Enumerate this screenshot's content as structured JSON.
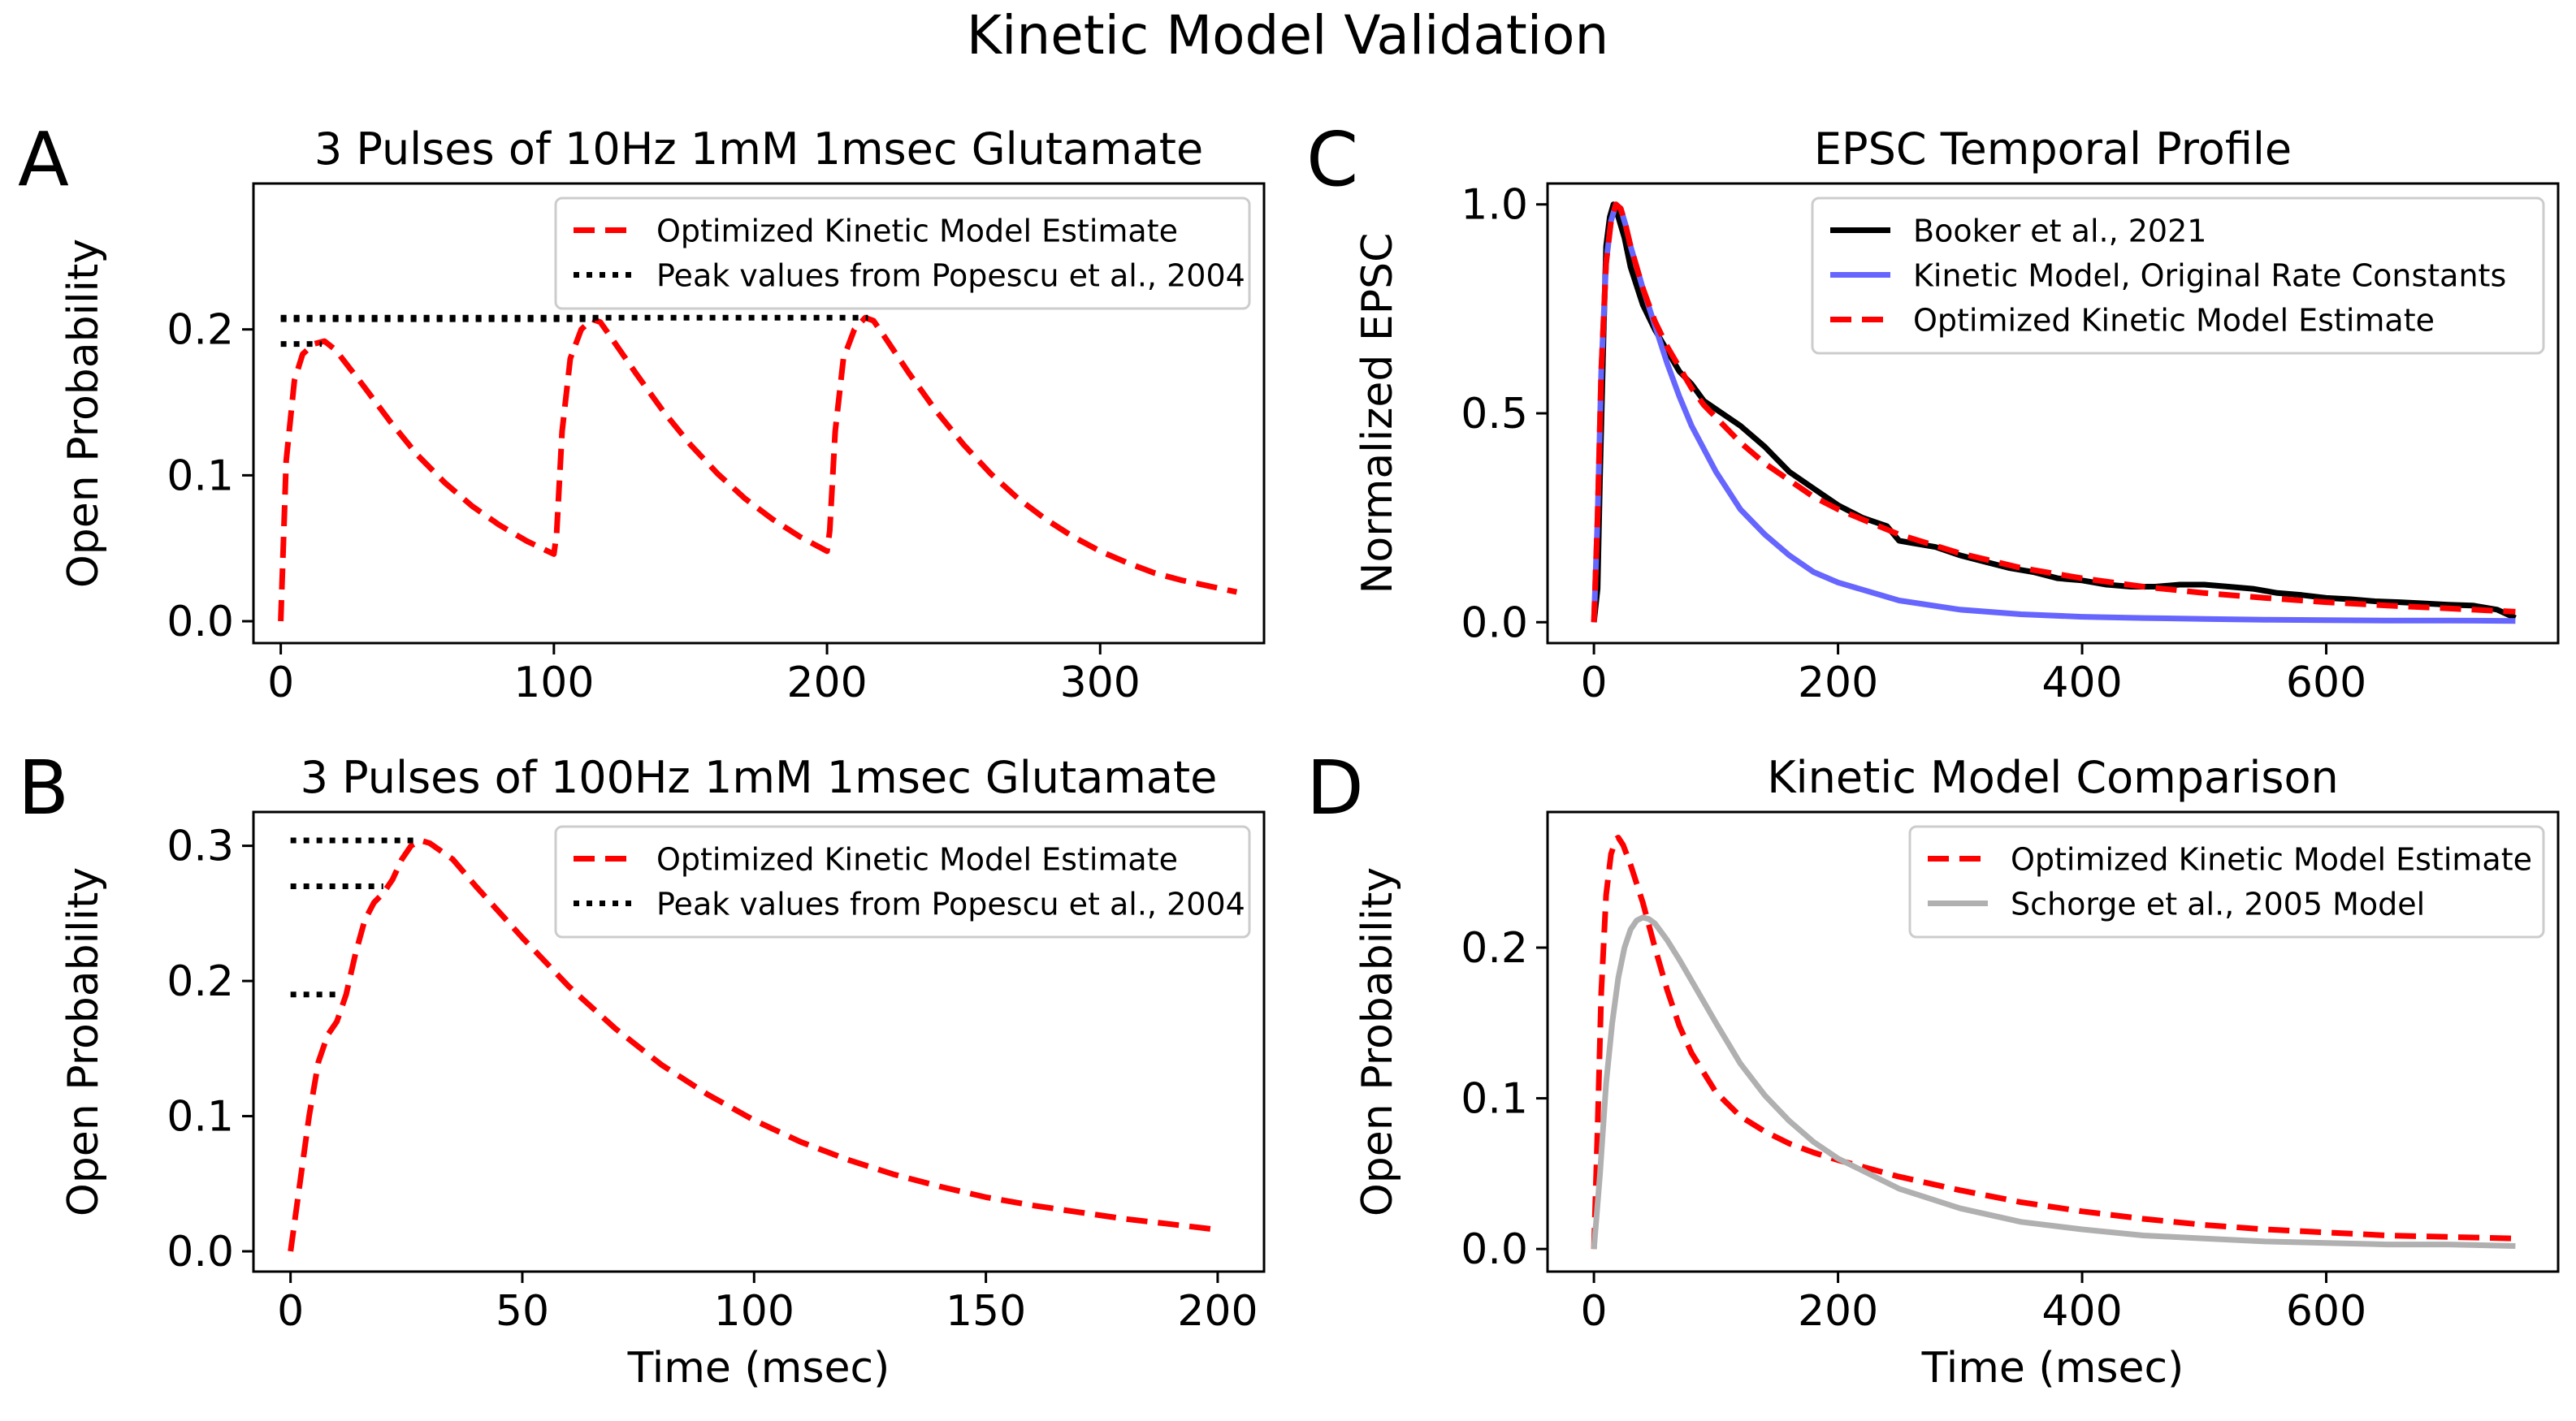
{
  "figure_title": "Kinetic Model Validation",
  "colors": {
    "optimized": "#ff0000",
    "popescu": "#000000",
    "booker": "#000000",
    "original": "#6666ff",
    "schorge": "#b0b0b0",
    "axis": "#000000"
  },
  "chart_data": [
    {
      "panel": "A",
      "type": "line",
      "title": "3 Pulses of 10Hz 1mM 1msec Glutamate",
      "xlabel": "",
      "ylabel": "Open Probability",
      "xlim": [
        -10,
        360
      ],
      "ylim": [
        -0.015,
        0.3
      ],
      "xticks": [
        0,
        100,
        200,
        300
      ],
      "yticks": [
        0.0,
        0.1,
        0.2
      ],
      "ytick_labels": [
        "0.0",
        "0.1",
        "0.2"
      ],
      "legend_position": "top-right",
      "series": [
        {
          "name": "Optimized Kinetic Model Estimate",
          "style": "dashed",
          "color_key": "optimized",
          "x": [
            0,
            2,
            5,
            8,
            12,
            16,
            20,
            30,
            40,
            50,
            60,
            70,
            80,
            90,
            100,
            101,
            103,
            106,
            110,
            114,
            117,
            120,
            130,
            140,
            150,
            160,
            170,
            180,
            190,
            200,
            201,
            203,
            206,
            210,
            214,
            217,
            220,
            230,
            240,
            250,
            260,
            270,
            280,
            290,
            300,
            310,
            320,
            330,
            340,
            350
          ],
          "y": [
            0.0,
            0.11,
            0.165,
            0.183,
            0.19,
            0.192,
            0.186,
            0.162,
            0.137,
            0.114,
            0.095,
            0.079,
            0.066,
            0.055,
            0.046,
            0.06,
            0.13,
            0.18,
            0.2,
            0.207,
            0.205,
            0.197,
            0.17,
            0.144,
            0.121,
            0.101,
            0.084,
            0.07,
            0.058,
            0.048,
            0.062,
            0.13,
            0.18,
            0.2,
            0.208,
            0.206,
            0.198,
            0.17,
            0.144,
            0.121,
            0.101,
            0.084,
            0.07,
            0.058,
            0.048,
            0.04,
            0.033,
            0.028,
            0.024,
            0.02
          ]
        },
        {
          "name": "Peak values from Popescu et al., 2004",
          "style": "dotted",
          "color_key": "popescu",
          "segments": [
            {
              "x": [
                0,
                15
              ],
              "y": [
                0.19,
                0.19
              ]
            },
            {
              "x": [
                0,
                115
              ],
              "y": [
                0.207,
                0.207
              ]
            },
            {
              "x": [
                0,
                215
              ],
              "y": [
                0.208,
                0.208
              ]
            }
          ]
        }
      ]
    },
    {
      "panel": "B",
      "type": "line",
      "title": "3 Pulses of 100Hz 1mM 1msec Glutamate",
      "xlabel": "Time (msec)",
      "ylabel": "Open Probability",
      "xlim": [
        -8,
        210
      ],
      "ylim": [
        -0.015,
        0.325
      ],
      "xticks": [
        0,
        50,
        100,
        150,
        200
      ],
      "yticks": [
        0.0,
        0.1,
        0.2,
        0.3
      ],
      "ytick_labels": [
        "0.0",
        "0.1",
        "0.2",
        "0.3"
      ],
      "legend_position": "top-right",
      "series": [
        {
          "name": "Optimized Kinetic Model Estimate",
          "style": "dashed",
          "color_key": "optimized",
          "x": [
            0,
            2,
            4,
            6,
            8,
            10,
            12,
            14,
            16,
            18,
            20,
            22,
            24,
            26,
            28,
            30,
            35,
            40,
            50,
            60,
            70,
            80,
            90,
            100,
            110,
            120,
            130,
            140,
            150,
            160,
            170,
            180,
            190,
            200
          ],
          "y": [
            0.0,
            0.05,
            0.1,
            0.14,
            0.16,
            0.17,
            0.19,
            0.22,
            0.245,
            0.258,
            0.265,
            0.275,
            0.29,
            0.3,
            0.304,
            0.302,
            0.29,
            0.27,
            0.232,
            0.196,
            0.165,
            0.138,
            0.116,
            0.097,
            0.081,
            0.068,
            0.057,
            0.048,
            0.04,
            0.034,
            0.029,
            0.024,
            0.02,
            0.016
          ]
        },
        {
          "name": "Peak values from Popescu et al., 2004",
          "style": "dotted",
          "color_key": "popescu",
          "segments": [
            {
              "x": [
                0,
                10
              ],
              "y": [
                0.19,
                0.19
              ]
            },
            {
              "x": [
                0,
                20
              ],
              "y": [
                0.27,
                0.27
              ]
            },
            {
              "x": [
                0,
                28
              ],
              "y": [
                0.304,
                0.304
              ]
            }
          ]
        }
      ]
    },
    {
      "panel": "C",
      "type": "line",
      "title": "EPSC Temporal Profile",
      "xlabel": "",
      "ylabel": "Normalized EPSC",
      "xlim": [
        -38,
        790
      ],
      "ylim": [
        -0.05,
        1.05
      ],
      "xticks": [
        0,
        200,
        400,
        600
      ],
      "yticks": [
        0.0,
        0.5,
        1.0
      ],
      "ytick_labels": [
        "0.0",
        "0.5",
        "1.0"
      ],
      "legend_position": "top-right",
      "series": [
        {
          "name": "Booker et al., 2021",
          "style": "solid",
          "color_key": "booker",
          "x": [
            0,
            3,
            5,
            8,
            10,
            13,
            16,
            20,
            25,
            30,
            40,
            50,
            60,
            70,
            80,
            90,
            100,
            120,
            140,
            160,
            180,
            200,
            220,
            240,
            250,
            260,
            280,
            300,
            320,
            340,
            360,
            380,
            400,
            420,
            440,
            460,
            480,
            500,
            520,
            540,
            560,
            580,
            600,
            620,
            640,
            660,
            680,
            700,
            720,
            740,
            755
          ],
          "y": [
            0.0,
            0.08,
            0.35,
            0.7,
            0.9,
            0.97,
            1.0,
            0.97,
            0.92,
            0.85,
            0.76,
            0.7,
            0.65,
            0.6,
            0.57,
            0.53,
            0.51,
            0.47,
            0.42,
            0.36,
            0.32,
            0.28,
            0.25,
            0.23,
            0.195,
            0.19,
            0.18,
            0.16,
            0.145,
            0.13,
            0.12,
            0.105,
            0.1,
            0.09,
            0.085,
            0.085,
            0.09,
            0.09,
            0.085,
            0.08,
            0.07,
            0.065,
            0.058,
            0.055,
            0.05,
            0.048,
            0.045,
            0.042,
            0.04,
            0.03,
            0.01
          ]
        },
        {
          "name": "Kinetic Model, Original Rate Constants",
          "style": "solid",
          "color_key": "original",
          "x": [
            0,
            3,
            6,
            10,
            14,
            18,
            22,
            26,
            30,
            40,
            50,
            60,
            70,
            80,
            100,
            120,
            140,
            160,
            180,
            200,
            250,
            300,
            350,
            400,
            450,
            500,
            550,
            600,
            650,
            700,
            755
          ],
          "y": [
            0.0,
            0.25,
            0.6,
            0.86,
            0.96,
            1.0,
            0.99,
            0.95,
            0.9,
            0.8,
            0.71,
            0.62,
            0.54,
            0.47,
            0.36,
            0.27,
            0.21,
            0.16,
            0.12,
            0.095,
            0.052,
            0.03,
            0.019,
            0.013,
            0.01,
            0.008,
            0.006,
            0.005,
            0.004,
            0.004,
            0.003
          ]
        },
        {
          "name": "Optimized Kinetic Model Estimate",
          "style": "dashed",
          "color_key": "optimized",
          "x": [
            0,
            3,
            6,
            10,
            14,
            18,
            22,
            26,
            30,
            40,
            50,
            60,
            70,
            80,
            90,
            100,
            120,
            140,
            160,
            180,
            200,
            250,
            300,
            350,
            400,
            450,
            500,
            550,
            600,
            650,
            700,
            755
          ],
          "y": [
            0.0,
            0.25,
            0.6,
            0.86,
            0.96,
            1.0,
            0.99,
            0.95,
            0.9,
            0.8,
            0.72,
            0.66,
            0.61,
            0.56,
            0.52,
            0.49,
            0.43,
            0.38,
            0.34,
            0.3,
            0.27,
            0.21,
            0.165,
            0.13,
            0.105,
            0.085,
            0.07,
            0.058,
            0.048,
            0.04,
            0.033,
            0.025
          ]
        }
      ]
    },
    {
      "panel": "D",
      "type": "line",
      "title": "Kinetic Model Comparison",
      "xlabel": "Time (msec)",
      "ylabel": "Open Probability",
      "xlim": [
        -38,
        790
      ],
      "ylim": [
        -0.015,
        0.29
      ],
      "xticks": [
        0,
        200,
        400,
        600
      ],
      "yticks": [
        0.0,
        0.1,
        0.2
      ],
      "ytick_labels": [
        "0.0",
        "0.1",
        "0.2"
      ],
      "legend_position": "top-right",
      "series": [
        {
          "name": "Optimized Kinetic Model Estimate",
          "style": "dashed",
          "color_key": "optimized",
          "x": [
            0,
            3,
            6,
            10,
            14,
            18,
            20,
            24,
            30,
            40,
            50,
            60,
            70,
            80,
            100,
            120,
            140,
            160,
            180,
            200,
            250,
            300,
            350,
            400,
            450,
            500,
            550,
            600,
            650,
            700,
            755
          ],
          "y": [
            0.0,
            0.08,
            0.17,
            0.235,
            0.262,
            0.272,
            0.273,
            0.268,
            0.255,
            0.23,
            0.2,
            0.172,
            0.148,
            0.13,
            0.104,
            0.088,
            0.078,
            0.07,
            0.064,
            0.059,
            0.048,
            0.039,
            0.031,
            0.025,
            0.02,
            0.016,
            0.013,
            0.011,
            0.009,
            0.008,
            0.007
          ]
        },
        {
          "name": "Schorge et al., 2005 Model",
          "style": "solid",
          "color_key": "schorge",
          "x": [
            0,
            5,
            10,
            15,
            20,
            25,
            30,
            35,
            40,
            45,
            50,
            60,
            70,
            80,
            100,
            120,
            140,
            160,
            180,
            200,
            250,
            300,
            350,
            400,
            450,
            500,
            550,
            600,
            650,
            700,
            755
          ],
          "y": [
            0.0,
            0.05,
            0.11,
            0.15,
            0.18,
            0.2,
            0.212,
            0.218,
            0.22,
            0.219,
            0.216,
            0.205,
            0.192,
            0.178,
            0.15,
            0.123,
            0.102,
            0.085,
            0.071,
            0.06,
            0.04,
            0.027,
            0.018,
            0.013,
            0.009,
            0.007,
            0.005,
            0.004,
            0.003,
            0.003,
            0.002
          ]
        }
      ]
    }
  ]
}
